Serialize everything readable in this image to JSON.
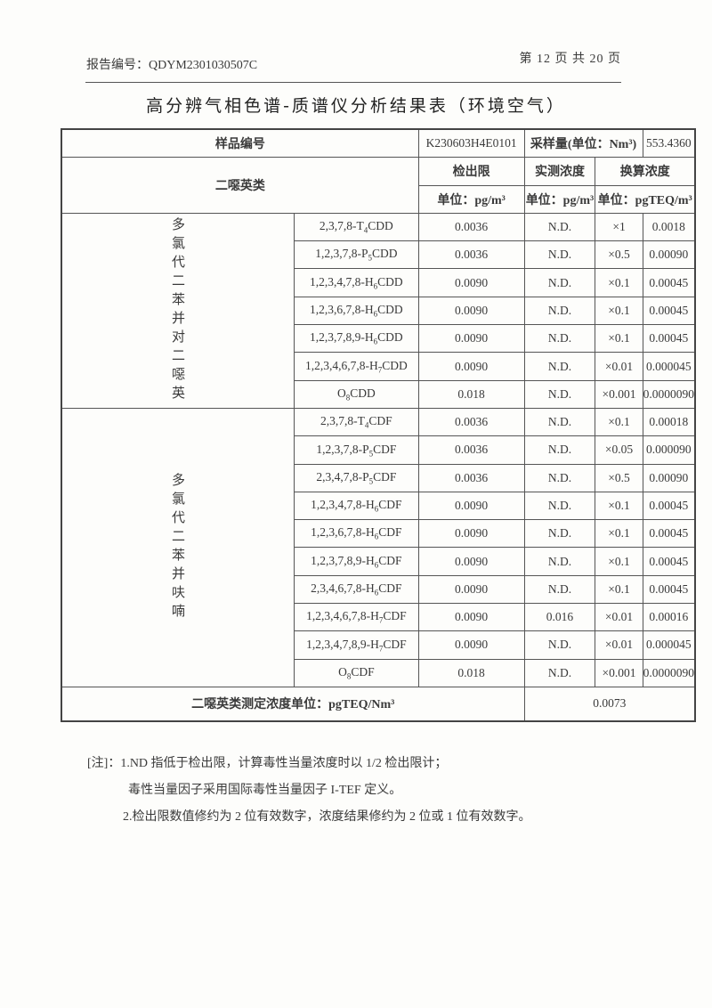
{
  "header": {
    "report_no": "报告编号：QDYM2301030507C",
    "page": "第 12 页 共 20 页"
  },
  "title": "高分辨气相色谱-质谱仪分析结果表（环境空气）",
  "table": {
    "sample_label": "样品编号",
    "sample_id": "K230603H4E0101",
    "volume_label": "采样量(单位：Nm³)",
    "volume": "553.4360",
    "class_label": "二噁英类",
    "dl_label": "检出限",
    "meas_label": "实测浓度",
    "conv_label": "换算浓度",
    "dl_unit": "单位：pg/m³",
    "meas_unit": "单位：pg/m³",
    "conv_unit": "单位：pgTEQ/m³",
    "groups": [
      {
        "label": "多氯代二苯并对二噁英",
        "rows": [
          {
            "pre": "2,3,7,8-T",
            "sub": "4",
            "post": "CDD",
            "dl": "0.0036",
            "meas": "N.D.",
            "tef": "×1",
            "teq": "0.0018"
          },
          {
            "pre": "1,2,3,7,8-P",
            "sub": "5",
            "post": "CDD",
            "dl": "0.0036",
            "meas": "N.D.",
            "tef": "×0.5",
            "teq": "0.00090"
          },
          {
            "pre": "1,2,3,4,7,8-H",
            "sub": "6",
            "post": "CDD",
            "dl": "0.0090",
            "meas": "N.D.",
            "tef": "×0.1",
            "teq": "0.00045"
          },
          {
            "pre": "1,2,3,6,7,8-H",
            "sub": "6",
            "post": "CDD",
            "dl": "0.0090",
            "meas": "N.D.",
            "tef": "×0.1",
            "teq": "0.00045"
          },
          {
            "pre": "1,2,3,7,8,9-H",
            "sub": "6",
            "post": "CDD",
            "dl": "0.0090",
            "meas": "N.D.",
            "tef": "×0.1",
            "teq": "0.00045"
          },
          {
            "pre": "1,2,3,4,6,7,8-H",
            "sub": "7",
            "post": "CDD",
            "dl": "0.0090",
            "meas": "N.D.",
            "tef": "×0.01",
            "teq": "0.000045"
          },
          {
            "pre": "O",
            "sub": "8",
            "post": "CDD",
            "dl": "0.018",
            "meas": "N.D.",
            "tef": "×0.001",
            "teq": "0.0000090"
          }
        ]
      },
      {
        "label": "多氯代二苯并呋喃",
        "rows": [
          {
            "pre": "2,3,7,8-T",
            "sub": "4",
            "post": "CDF",
            "dl": "0.0036",
            "meas": "N.D.",
            "tef": "×0.1",
            "teq": "0.00018"
          },
          {
            "pre": "1,2,3,7,8-P",
            "sub": "5",
            "post": "CDF",
            "dl": "0.0036",
            "meas": "N.D.",
            "tef": "×0.05",
            "teq": "0.000090"
          },
          {
            "pre": "2,3,4,7,8-P",
            "sub": "5",
            "post": "CDF",
            "dl": "0.0036",
            "meas": "N.D.",
            "tef": "×0.5",
            "teq": "0.00090"
          },
          {
            "pre": "1,2,3,4,7,8-H",
            "sub": "6",
            "post": "CDF",
            "dl": "0.0090",
            "meas": "N.D.",
            "tef": "×0.1",
            "teq": "0.00045"
          },
          {
            "pre": "1,2,3,6,7,8-H",
            "sub": "6",
            "post": "CDF",
            "dl": "0.0090",
            "meas": "N.D.",
            "tef": "×0.1",
            "teq": "0.00045"
          },
          {
            "pre": "1,2,3,7,8,9-H",
            "sub": "6",
            "post": "CDF",
            "dl": "0.0090",
            "meas": "N.D.",
            "tef": "×0.1",
            "teq": "0.00045"
          },
          {
            "pre": "2,3,4,6,7,8-H",
            "sub": "6",
            "post": "CDF",
            "dl": "0.0090",
            "meas": "N.D.",
            "tef": "×0.1",
            "teq": "0.00045"
          },
          {
            "pre": "1,2,3,4,6,7,8-H",
            "sub": "7",
            "post": "CDF",
            "dl": "0.0090",
            "meas": "0.016",
            "tef": "×0.01",
            "teq": "0.00016"
          },
          {
            "pre": "1,2,3,4,7,8,9-H",
            "sub": "7",
            "post": "CDF",
            "dl": "0.0090",
            "meas": "N.D.",
            "tef": "×0.01",
            "teq": "0.000045"
          },
          {
            "pre": "O",
            "sub": "8",
            "post": "CDF",
            "dl": "0.018",
            "meas": "N.D.",
            "tef": "×0.001",
            "teq": "0.0000090"
          }
        ]
      }
    ],
    "total_label": "二噁英类测定浓度单位：pgTEQ/Nm³",
    "total": "0.0073"
  },
  "notes": [
    "[注]：1.ND 指低于检出限，计算毒性当量浓度时以 1/2 检出限计；",
    "毒性当量因子采用国际毒性当量因子 I-TEF 定义。",
    "2.检出限数值修约为 2 位有效数字，浓度结果修约为 2 位或 1 位有效数字。"
  ]
}
